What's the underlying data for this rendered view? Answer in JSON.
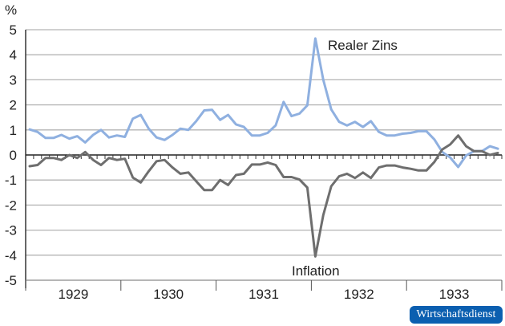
{
  "chart_data": {
    "type": "line",
    "title": "",
    "unit_label": "%",
    "xlabel": "",
    "ylabel": "%",
    "ylim": [
      -5,
      5
    ],
    "yticks": [
      5,
      4,
      3,
      2,
      1,
      0,
      -1,
      -2,
      -3,
      -4,
      -5
    ],
    "ytick_labels": [
      "5",
      "4",
      "3",
      "2",
      "1",
      "0",
      "-1",
      "-2",
      "-3",
      "-4",
      "-5"
    ],
    "grid": true,
    "x_categories": [
      "1929",
      "1930",
      "1931",
      "1932",
      "1933"
    ],
    "x_frequency": "monthly",
    "n_points": 60,
    "series": [
      {
        "name": "Realer Zins",
        "color": "#8fb0e0",
        "values": [
          1.02,
          0.92,
          0.68,
          0.68,
          0.8,
          0.65,
          0.75,
          0.5,
          0.8,
          1.0,
          0.7,
          0.78,
          0.72,
          1.45,
          1.6,
          1.05,
          0.7,
          0.6,
          0.8,
          1.05,
          1.0,
          1.35,
          1.78,
          1.8,
          1.4,
          1.6,
          1.22,
          1.12,
          0.78,
          0.78,
          0.88,
          1.18,
          2.12,
          1.55,
          1.65,
          1.98,
          4.65,
          3.0,
          1.82,
          1.32,
          1.18,
          1.32,
          1.12,
          1.35,
          0.92,
          0.78,
          0.78,
          0.85,
          0.88,
          0.95,
          0.95,
          0.62,
          0.12,
          -0.1,
          -0.48,
          -0.02,
          0.15,
          0.15,
          0.35,
          0.25
        ]
      },
      {
        "name": "Inflation",
        "color": "#6e6e6e",
        "values": [
          -0.45,
          -0.4,
          -0.12,
          -0.12,
          -0.2,
          0.0,
          -0.12,
          0.12,
          -0.2,
          -0.4,
          -0.12,
          -0.2,
          -0.15,
          -0.9,
          -1.1,
          -0.65,
          -0.25,
          -0.2,
          -0.5,
          -0.75,
          -0.7,
          -1.05,
          -1.4,
          -1.4,
          -1.0,
          -1.2,
          -0.8,
          -0.75,
          -0.38,
          -0.38,
          -0.3,
          -0.4,
          -0.88,
          -0.88,
          -0.98,
          -1.3,
          -4.05,
          -2.4,
          -1.25,
          -0.85,
          -0.75,
          -0.92,
          -0.7,
          -0.92,
          -0.5,
          -0.42,
          -0.42,
          -0.5,
          -0.55,
          -0.62,
          -0.62,
          -0.28,
          0.22,
          0.42,
          0.78,
          0.35,
          0.15,
          0.15,
          0.0,
          0.08
        ]
      }
    ],
    "annotations": [
      {
        "text": "Realer Zins",
        "series": "Realer Zins",
        "position": "near peak, upper right"
      },
      {
        "text": "Inflation",
        "series": "Inflation",
        "position": "below trough"
      }
    ],
    "legend": "none (direct labels)"
  },
  "labels": {
    "unit": "%",
    "realer_zins": "Realer Zins",
    "inflation": "Inflation",
    "years": [
      "1929",
      "1930",
      "1931",
      "1932",
      "1933"
    ]
  },
  "branding": {
    "badge_text": "Wirtschaftsdienst",
    "badge_color": "#0b5fb0"
  }
}
